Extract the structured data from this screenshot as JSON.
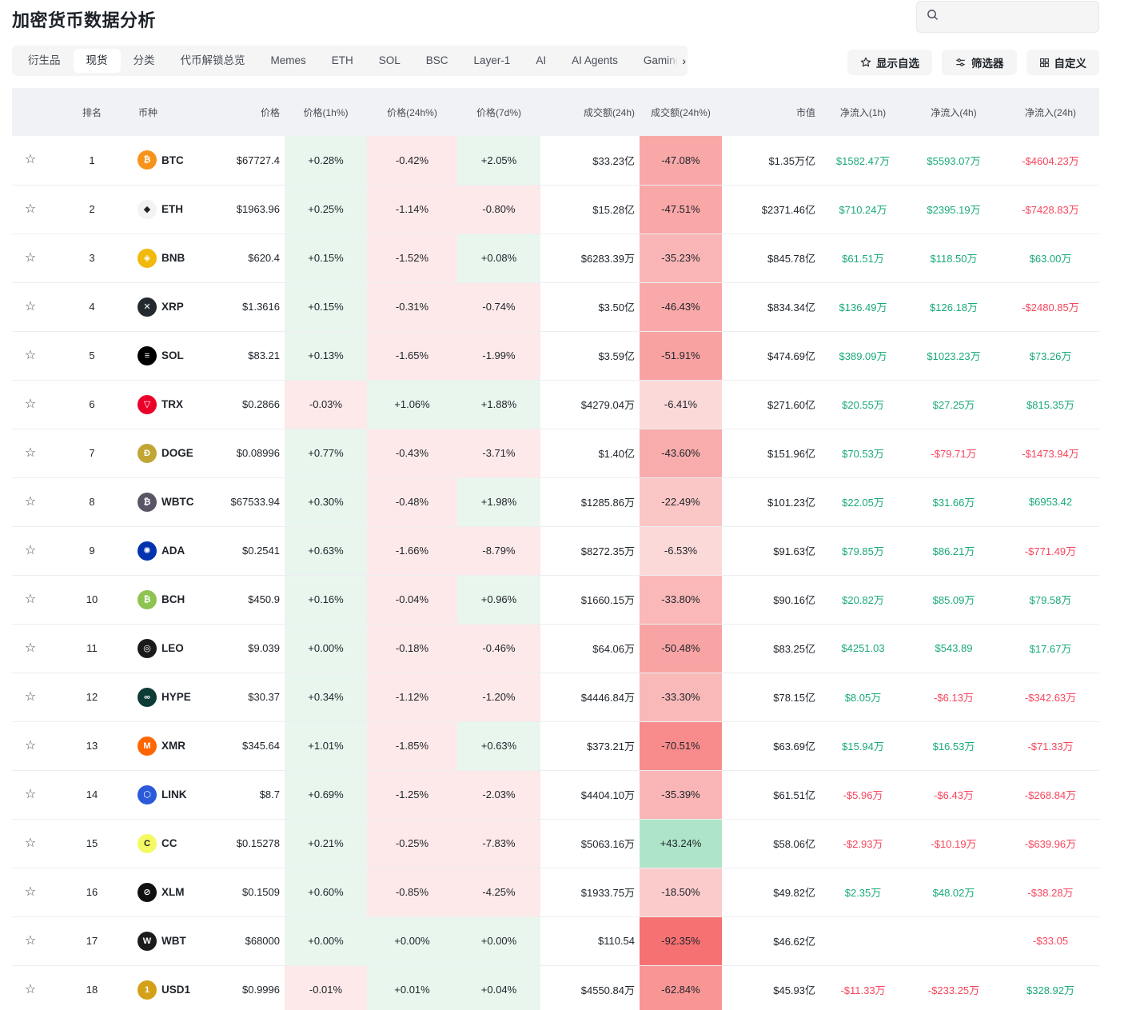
{
  "title": "加密货币数据分析",
  "search": {
    "placeholder": ""
  },
  "tabs": [
    {
      "label": "衍生品",
      "active": false
    },
    {
      "label": "现货",
      "active": true
    },
    {
      "label": "分类",
      "active": false
    },
    {
      "label": "代币解锁总览",
      "active": false
    },
    {
      "label": "Memes",
      "active": false
    },
    {
      "label": "ETH",
      "active": false
    },
    {
      "label": "SOL",
      "active": false
    },
    {
      "label": "BSC",
      "active": false
    },
    {
      "label": "Layer-1",
      "active": false
    },
    {
      "label": "AI",
      "active": false
    },
    {
      "label": "AI Agents",
      "active": false
    },
    {
      "label": "Gaming",
      "active": false
    }
  ],
  "actions": {
    "watchlist_label": "显示自选",
    "filter_label": "筛选器",
    "customize_label": "自定义"
  },
  "columns": [
    "",
    "排名",
    "币种",
    "价格",
    "价格(1h%)",
    "价格(24h%)",
    "价格(7d%)",
    "成交额(24h)",
    "成交额(24h%)",
    "市值",
    "净流入(1h)",
    "净流入(4h)",
    "净流入(24h)"
  ],
  "colors": {
    "positive_text": "#19a97b",
    "negative_text": "#f6465d",
    "green_cell": "#e9f6ee",
    "red_cell": "#fde9e9",
    "header_bg": "#f0f2f5"
  },
  "rows": [
    {
      "rank": "1",
      "symbol": "BTC",
      "icon": "bitcoin-icon",
      "icon_color": "#f7931a",
      "icon_glyph": "₿",
      "price": "$67727.4",
      "p1h": "+0.28%",
      "p24h": "-0.42%",
      "p7d": "+2.05%",
      "vol": "$33.23亿",
      "vol_pct": "-47.08%",
      "vol_pct_value": -47.08,
      "mcap": "$1.35万亿",
      "in1h": "$1582.47万",
      "in4h": "$5593.07万",
      "in24h": "-$4604.23万"
    },
    {
      "rank": "2",
      "symbol": "ETH",
      "icon": "ethereum-icon",
      "icon_color": "#f3f3f3",
      "icon_glyph": "◆",
      "price": "$1963.96",
      "p1h": "+0.25%",
      "p24h": "-1.14%",
      "p7d": "-0.80%",
      "vol": "$15.28亿",
      "vol_pct": "-47.51%",
      "vol_pct_value": -47.51,
      "mcap": "$2371.46亿",
      "in1h": "$710.24万",
      "in4h": "$2395.19万",
      "in24h": "-$7428.83万"
    },
    {
      "rank": "3",
      "symbol": "BNB",
      "icon": "bnb-icon",
      "icon_color": "#f0b90b",
      "icon_glyph": "◈",
      "price": "$620.4",
      "p1h": "+0.15%",
      "p24h": "-1.52%",
      "p7d": "+0.08%",
      "vol": "$6283.39万",
      "vol_pct": "-35.23%",
      "vol_pct_value": -35.23,
      "mcap": "$845.78亿",
      "in1h": "$61.51万",
      "in4h": "$118.50万",
      "in24h": "$63.00万"
    },
    {
      "rank": "4",
      "symbol": "XRP",
      "icon": "xrp-icon",
      "icon_color": "#23292f",
      "icon_glyph": "✕",
      "price": "$1.3616",
      "p1h": "+0.15%",
      "p24h": "-0.31%",
      "p7d": "-0.74%",
      "vol": "$3.50亿",
      "vol_pct": "-46.43%",
      "vol_pct_value": -46.43,
      "mcap": "$834.34亿",
      "in1h": "$136.49万",
      "in4h": "$126.18万",
      "in24h": "-$2480.85万"
    },
    {
      "rank": "5",
      "symbol": "SOL",
      "icon": "solana-icon",
      "icon_color": "#000000",
      "icon_glyph": "≡",
      "price": "$83.21",
      "p1h": "+0.13%",
      "p24h": "-1.65%",
      "p7d": "-1.99%",
      "vol": "$3.59亿",
      "vol_pct": "-51.91%",
      "vol_pct_value": -51.91,
      "mcap": "$474.69亿",
      "in1h": "$389.09万",
      "in4h": "$1023.23万",
      "in24h": "$73.26万"
    },
    {
      "rank": "6",
      "symbol": "TRX",
      "icon": "tron-icon",
      "icon_color": "#eb0029",
      "icon_glyph": "▽",
      "price": "$0.2866",
      "p1h": "-0.03%",
      "p24h": "+1.06%",
      "p7d": "+1.88%",
      "vol": "$4279.04万",
      "vol_pct": "-6.41%",
      "vol_pct_value": -6.41,
      "mcap": "$271.60亿",
      "in1h": "$20.55万",
      "in4h": "$27.25万",
      "in24h": "$815.35万"
    },
    {
      "rank": "7",
      "symbol": "DOGE",
      "icon": "dogecoin-icon",
      "icon_color": "#c2a633",
      "icon_glyph": "Ð",
      "price": "$0.08996",
      "p1h": "+0.77%",
      "p24h": "-0.43%",
      "p7d": "-3.71%",
      "vol": "$1.40亿",
      "vol_pct": "-43.60%",
      "vol_pct_value": -43.6,
      "mcap": "$151.96亿",
      "in1h": "$70.53万",
      "in4h": "-$79.71万",
      "in24h": "-$1473.94万"
    },
    {
      "rank": "8",
      "symbol": "WBTC",
      "icon": "wrapped-bitcoin-icon",
      "icon_color": "#5a5564",
      "icon_glyph": "₿",
      "price": "$67533.94",
      "p1h": "+0.30%",
      "p24h": "-0.48%",
      "p7d": "+1.98%",
      "vol": "$1285.86万",
      "vol_pct": "-22.49%",
      "vol_pct_value": -22.49,
      "mcap": "$101.23亿",
      "in1h": "$22.05万",
      "in4h": "$31.66万",
      "in24h": "$6953.42"
    },
    {
      "rank": "9",
      "symbol": "ADA",
      "icon": "cardano-icon",
      "icon_color": "#0033ad",
      "icon_glyph": "✺",
      "price": "$0.2541",
      "p1h": "+0.63%",
      "p24h": "-1.66%",
      "p7d": "-8.79%",
      "vol": "$8272.35万",
      "vol_pct": "-6.53%",
      "vol_pct_value": -6.53,
      "mcap": "$91.63亿",
      "in1h": "$79.85万",
      "in4h": "$86.21万",
      "in24h": "-$771.49万"
    },
    {
      "rank": "10",
      "symbol": "BCH",
      "icon": "bitcoin-cash-icon",
      "icon_color": "#8dc351",
      "icon_glyph": "₿",
      "price": "$450.9",
      "p1h": "+0.16%",
      "p24h": "-0.04%",
      "p7d": "+0.96%",
      "vol": "$1660.15万",
      "vol_pct": "-33.80%",
      "vol_pct_value": -33.8,
      "mcap": "$90.16亿",
      "in1h": "$20.82万",
      "in4h": "$85.09万",
      "in24h": "$79.58万"
    },
    {
      "rank": "11",
      "symbol": "LEO",
      "icon": "leo-icon",
      "icon_color": "#1a1a1a",
      "icon_glyph": "◎",
      "price": "$9.039",
      "p1h": "+0.00%",
      "p24h": "-0.18%",
      "p7d": "-0.46%",
      "vol": "$64.06万",
      "vol_pct": "-50.48%",
      "vol_pct_value": -50.48,
      "mcap": "$83.25亿",
      "in1h": "$4251.03",
      "in4h": "$543.89",
      "in24h": "$17.67万"
    },
    {
      "rank": "12",
      "symbol": "HYPE",
      "icon": "hyperliquid-icon",
      "icon_color": "#0d3b36",
      "icon_glyph": "∞",
      "price": "$30.37",
      "p1h": "+0.34%",
      "p24h": "-1.12%",
      "p7d": "-1.20%",
      "vol": "$4446.84万",
      "vol_pct": "-33.30%",
      "vol_pct_value": -33.3,
      "mcap": "$78.15亿",
      "in1h": "$8.05万",
      "in4h": "-$6.13万",
      "in24h": "-$342.63万"
    },
    {
      "rank": "13",
      "symbol": "XMR",
      "icon": "monero-icon",
      "icon_color": "#ff6600",
      "icon_glyph": "M",
      "price": "$345.64",
      "p1h": "+1.01%",
      "p24h": "-1.85%",
      "p7d": "+0.63%",
      "vol": "$373.21万",
      "vol_pct": "-70.51%",
      "vol_pct_value": -70.51,
      "mcap": "$63.69亿",
      "in1h": "$15.94万",
      "in4h": "$16.53万",
      "in24h": "-$71.33万"
    },
    {
      "rank": "14",
      "symbol": "LINK",
      "icon": "chainlink-icon",
      "icon_color": "#2a5ada",
      "icon_glyph": "⬡",
      "price": "$8.7",
      "p1h": "+0.69%",
      "p24h": "-1.25%",
      "p7d": "-2.03%",
      "vol": "$4404.10万",
      "vol_pct": "-35.39%",
      "vol_pct_value": -35.39,
      "mcap": "$61.51亿",
      "in1h": "-$5.96万",
      "in4h": "-$6.43万",
      "in24h": "-$268.84万"
    },
    {
      "rank": "15",
      "symbol": "CC",
      "icon": "canton-coin-icon",
      "icon_color": "#f4f964",
      "icon_glyph": "C",
      "price": "$0.15278",
      "p1h": "+0.21%",
      "p24h": "-0.25%",
      "p7d": "-7.83%",
      "vol": "$5063.16万",
      "vol_pct": "+43.24%",
      "vol_pct_value": 43.24,
      "mcap": "$58.06亿",
      "in1h": "-$2.93万",
      "in4h": "-$10.19万",
      "in24h": "-$639.96万"
    },
    {
      "rank": "16",
      "symbol": "XLM",
      "icon": "stellar-icon",
      "icon_color": "#111111",
      "icon_glyph": "⊘",
      "price": "$0.1509",
      "p1h": "+0.60%",
      "p24h": "-0.85%",
      "p7d": "-4.25%",
      "vol": "$1933.75万",
      "vol_pct": "-18.50%",
      "vol_pct_value": -18.5,
      "mcap": "$49.82亿",
      "in1h": "$2.35万",
      "in4h": "$48.02万",
      "in24h": "-$38.28万"
    },
    {
      "rank": "17",
      "symbol": "WBT",
      "icon": "whitebit-icon",
      "icon_color": "#1b1b1b",
      "icon_glyph": "W",
      "price": "$68000",
      "p1h": "+0.00%",
      "p24h": "+0.00%",
      "p7d": "+0.00%",
      "vol": "$110.54",
      "vol_pct": "-92.35%",
      "vol_pct_value": -92.35,
      "mcap": "$46.62亿",
      "in1h": "",
      "in4h": "",
      "in24h": "-$33.05"
    },
    {
      "rank": "18",
      "symbol": "USD1",
      "icon": "usd1-icon",
      "icon_color": "#d4a017",
      "icon_glyph": "1",
      "price": "$0.9996",
      "p1h": "-0.01%",
      "p24h": "+0.01%",
      "p7d": "+0.04%",
      "vol": "$4550.84万",
      "vol_pct": "-62.84%",
      "vol_pct_value": -62.84,
      "mcap": "$45.93亿",
      "in1h": "-$11.33万",
      "in4h": "-$233.25万",
      "in24h": "$328.92万"
    }
  ]
}
